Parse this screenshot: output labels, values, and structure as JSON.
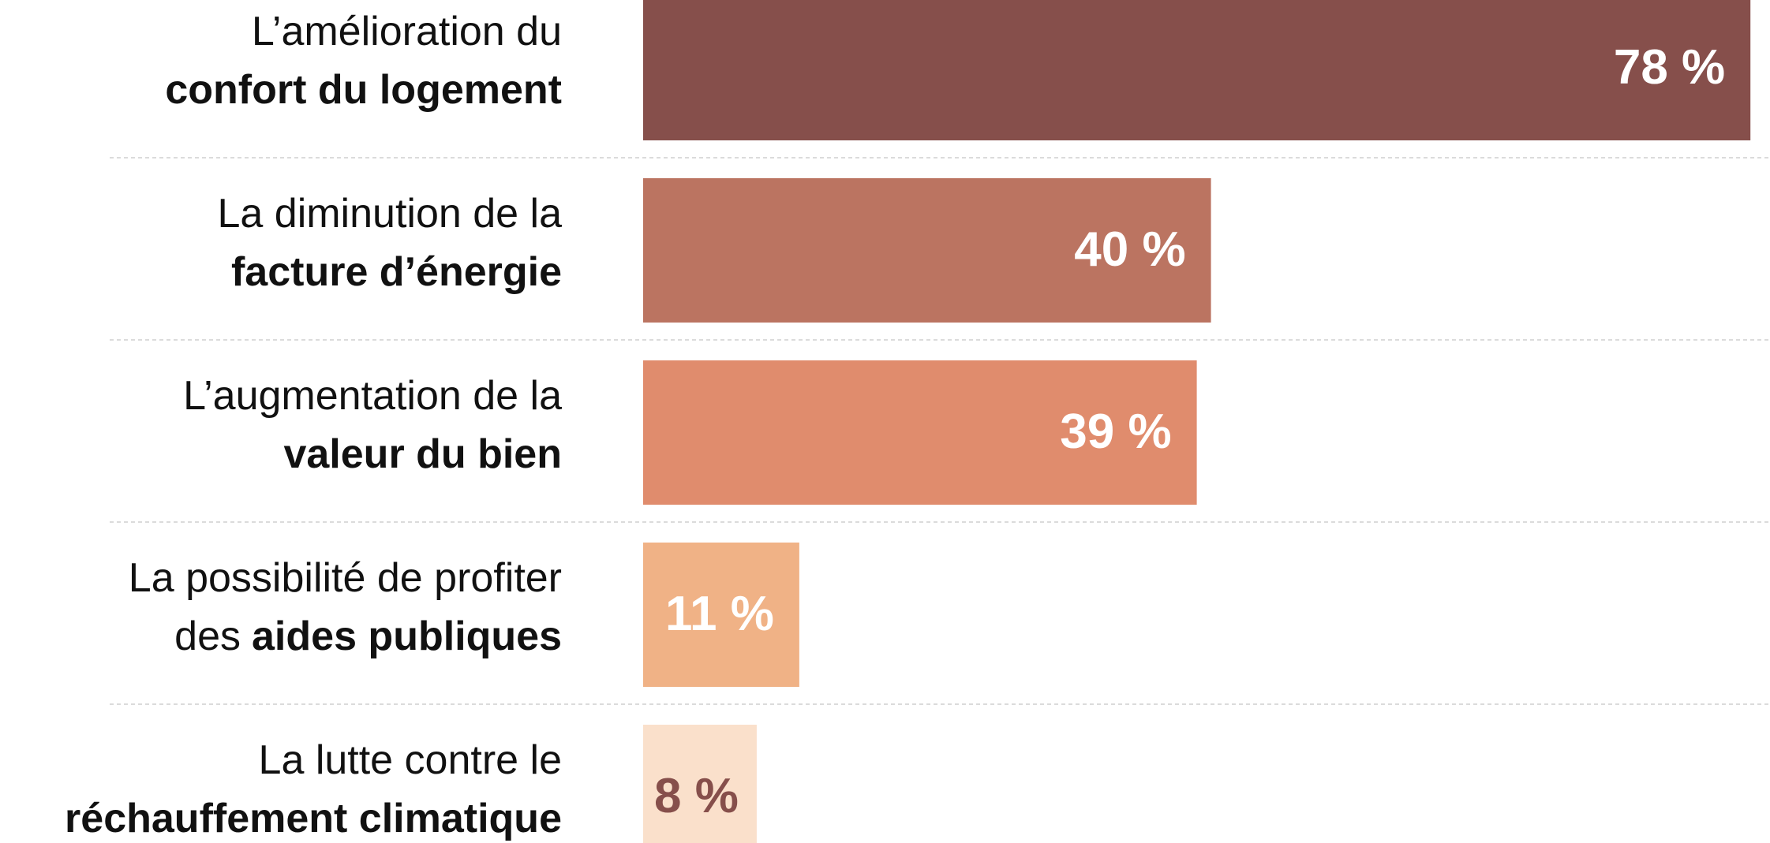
{
  "chart_data": {
    "type": "barh",
    "categories": [
      [
        [
          {
            "text": "L’amélioration du",
            "bold": false
          }
        ],
        [
          {
            "text": "confort du logement",
            "bold": true
          }
        ]
      ],
      [
        [
          {
            "text": "La diminution de la",
            "bold": false
          }
        ],
        [
          {
            "text": "facture d’énergie",
            "bold": true
          }
        ]
      ],
      [
        [
          {
            "text": "L’augmentation de la",
            "bold": false
          }
        ],
        [
          {
            "text": "valeur du bien",
            "bold": true
          }
        ]
      ],
      [
        [
          {
            "text": "La possibilité de profiter",
            "bold": false
          }
        ],
        [
          {
            "text": "des",
            "bold": false
          },
          {
            "text": "aides publiques",
            "bold": true
          }
        ]
      ],
      [
        [
          {
            "text": "La lutte contre le",
            "bold": false
          }
        ],
        [
          {
            "text": "réchauffement climatique",
            "bold": true
          }
        ]
      ]
    ],
    "values": [
      78,
      40,
      39,
      11,
      8
    ],
    "value_labels": [
      "78 %",
      "40 %",
      "39 %",
      "11 %",
      "8 %"
    ],
    "colors": [
      "#864f4b",
      "#bb7461",
      "#e08c6d",
      "#f0b286",
      "#fae0cb"
    ],
    "label_colors": [
      "#ffffff",
      "#ffffff",
      "#ffffff",
      "#ffffff",
      "#864f4b"
    ],
    "xlim": [
      0,
      77.6
    ]
  }
}
